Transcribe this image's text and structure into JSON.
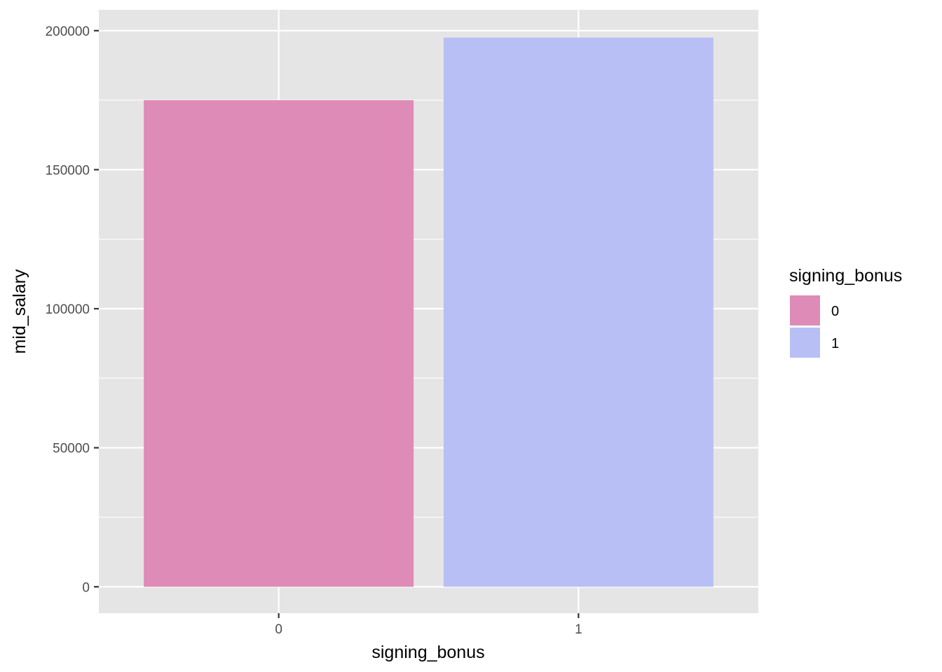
{
  "chart_data": {
    "type": "bar",
    "categories": [
      "0",
      "1"
    ],
    "values": [
      175000,
      197500
    ],
    "colors": [
      "#de8bb7",
      "#b8bff5"
    ],
    "xlabel": "signing_bonus",
    "ylabel": "mid_salary",
    "ylim": [
      -9500,
      207500
    ],
    "yticks": [
      0,
      50000,
      100000,
      150000,
      200000
    ],
    "ytick_labels": [
      "0",
      "50000",
      "100000",
      "150000",
      "200000"
    ],
    "grid": true,
    "panel_background": "#e5e5e5",
    "legend": {
      "title": "signing_bonus",
      "placement": "right",
      "entries": [
        {
          "label": "0",
          "color": "#de8bb7"
        },
        {
          "label": "1",
          "color": "#b8bff5"
        }
      ]
    }
  }
}
